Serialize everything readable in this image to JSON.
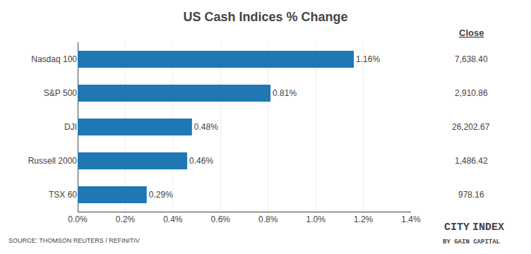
{
  "chart_data": {
    "type": "bar",
    "orientation": "horizontal",
    "title": "US Cash Indices % Change",
    "categories": [
      "TSX 60",
      "Russell 2000",
      "DJI",
      "S&P 500",
      "Nasdaq 100"
    ],
    "values": [
      0.0029,
      0.0046,
      0.0048,
      0.0081,
      0.0116
    ],
    "value_labels": [
      "0.29%",
      "0.46%",
      "0.48%",
      "0.81%",
      "1.16%"
    ],
    "data_labels": true,
    "close_values": [
      "978.16",
      "1,486.42",
      "26,202.67",
      "2,910.86",
      "7,638.40"
    ],
    "xlim": [
      0,
      0.014
    ],
    "xticks": [
      {
        "value": 0.0,
        "label": "0.0%"
      },
      {
        "value": 0.002,
        "label": "0.2%"
      },
      {
        "value": 0.004,
        "label": "0.4%"
      },
      {
        "value": 0.006,
        "label": "0.6%"
      },
      {
        "value": 0.008,
        "label": "0.8%"
      },
      {
        "value": 0.01,
        "label": "1.0%"
      },
      {
        "value": 0.012,
        "label": "1.2%"
      },
      {
        "value": 0.014,
        "label": "1.4%"
      }
    ],
    "grid": true,
    "annotations": [
      "Close",
      "SOURCE: THOMSON REUTERS / REFINITIV",
      "CITY",
      "INDEX",
      "BY GAIN CAPITAL"
    ]
  }
}
